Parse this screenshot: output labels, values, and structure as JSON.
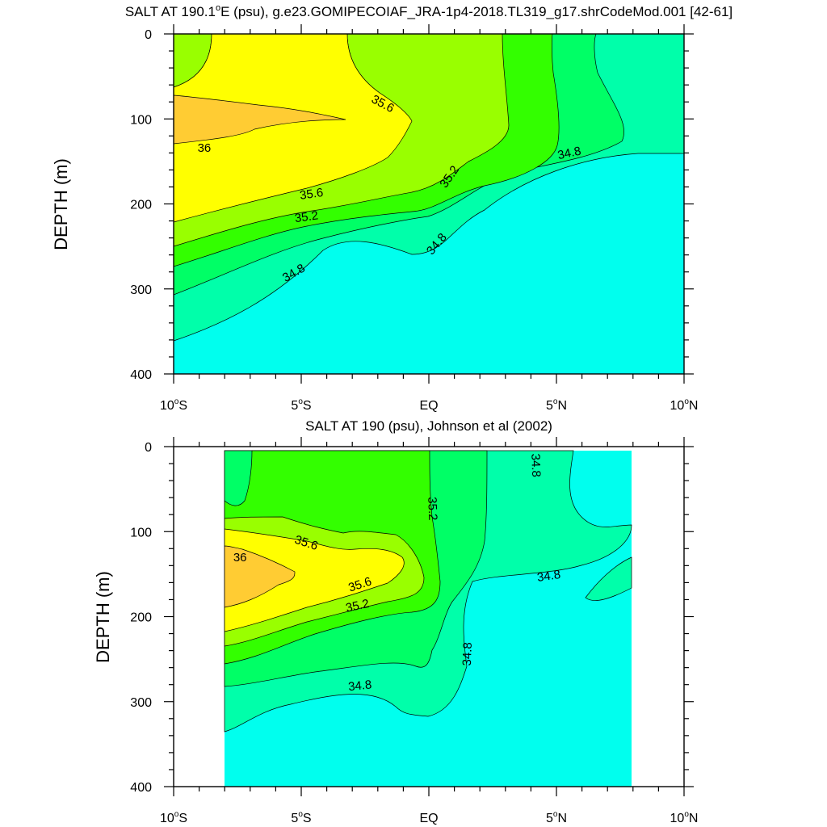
{
  "chart_data": [
    {
      "type": "contour",
      "title_parts": [
        "SALT AT 190.1",
        "o",
        "E (psu), g.e23.GOMIPECOIAF_JRA-1p4-2018.TL319_g17.shrCodeMod.001 [42-61]"
      ],
      "ylabel": "DEPTH (m)",
      "xlim": [
        -10,
        10
      ],
      "ylim": [
        400,
        0
      ],
      "x_ticks": [
        {
          "value": -10,
          "num": "10",
          "deg": "o",
          "hemi": "S"
        },
        {
          "value": -5,
          "num": "5",
          "deg": "o",
          "hemi": "S"
        },
        {
          "value": 0,
          "num": "EQ",
          "deg": "",
          "hemi": ""
        },
        {
          "value": 5,
          "num": "5",
          "deg": "o",
          "hemi": "N"
        },
        {
          "value": 10,
          "num": "10",
          "deg": "o",
          "hemi": "N"
        }
      ],
      "y_ticks": [
        "0",
        "100",
        "200",
        "300",
        "400"
      ],
      "contour_labels": [
        {
          "text": "36",
          "x": -8.8,
          "y": 134,
          "angle": 0
        },
        {
          "text": "35.6",
          "x": -1.8,
          "y": 82,
          "angle": 28
        },
        {
          "text": "35.6",
          "x": -4.6,
          "y": 188,
          "angle": -8
        },
        {
          "text": "35.2",
          "x": -4.8,
          "y": 215,
          "angle": -8
        },
        {
          "text": "35.2",
          "x": 0.8,
          "y": 168,
          "angle": -55
        },
        {
          "text": "34.8",
          "x": 0.3,
          "y": 247,
          "angle": -50
        },
        {
          "text": "34.8",
          "x": -5.3,
          "y": 281,
          "angle": -30
        },
        {
          "text": "34.8",
          "x": 5.5,
          "y": 140,
          "angle": -12
        }
      ],
      "colors": {
        "above_36": "#FFCC33",
        "35.6_36": "#FFFF00",
        "35.4_35.6": "#99FF00",
        "35.2_35.4": "#33FF00",
        "35.0_35.2": "#00FF66",
        "34.8_35.0": "#00FFAA",
        "below_34.8": "#00FFEE"
      }
    },
    {
      "type": "contour",
      "title_parts": [
        "SALT AT 190 (psu), Johnson et al (2002)"
      ],
      "ylabel": "DEPTH (m)",
      "xlim": [
        -10,
        10
      ],
      "ylim": [
        400,
        0
      ],
      "x_ticks": [
        {
          "value": -10,
          "num": "10",
          "deg": "o",
          "hemi": "S"
        },
        {
          "value": -5,
          "num": "5",
          "deg": "o",
          "hemi": "S"
        },
        {
          "value": 0,
          "num": "EQ",
          "deg": "",
          "hemi": ""
        },
        {
          "value": 5,
          "num": "5",
          "deg": "o",
          "hemi": "N"
        },
        {
          "value": 10,
          "num": "10",
          "deg": "o",
          "hemi": "N"
        }
      ],
      "y_ticks": [
        "0",
        "100",
        "200",
        "300",
        "400"
      ],
      "contour_labels": [
        {
          "text": "36",
          "x": -7.4,
          "y": 130,
          "angle": 0
        },
        {
          "text": "35.6",
          "x": -4.8,
          "y": 113,
          "angle": 18
        },
        {
          "text": "35.6",
          "x": -2.7,
          "y": 162,
          "angle": -18
        },
        {
          "text": "35.2",
          "x": -2.8,
          "y": 187,
          "angle": -12
        },
        {
          "text": "35.2",
          "x": 0.15,
          "y": 73,
          "angle": 88
        },
        {
          "text": "34.8",
          "x": 4.2,
          "y": 22,
          "angle": 88
        },
        {
          "text": "34.8",
          "x": 4.7,
          "y": 152,
          "angle": -8
        },
        {
          "text": "34.8",
          "x": 1.5,
          "y": 244,
          "angle": -88
        },
        {
          "text": "34.8",
          "x": -2.7,
          "y": 281,
          "angle": -6
        }
      ],
      "colors": {
        "above_36": "#FFCC33",
        "35.6_36": "#FFFF00",
        "35.4_35.6": "#99FF00",
        "35.2_35.4": "#33FF00",
        "35.0_35.2": "#00FF66",
        "34.8_35.0": "#00FFAA",
        "below_34.8": "#00FFEE"
      }
    }
  ]
}
